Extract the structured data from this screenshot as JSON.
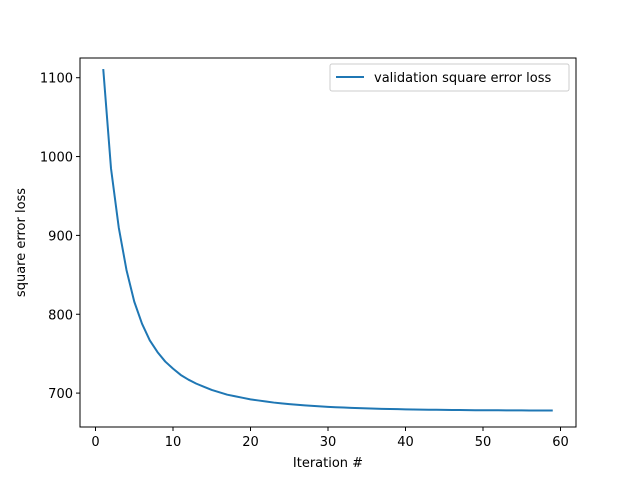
{
  "chart_data": {
    "type": "line",
    "title": "",
    "xlabel": "Iteration #",
    "ylabel": "square error loss",
    "xlim": [
      -2,
      62
    ],
    "ylim": [
      657,
      1125
    ],
    "xticks": [
      0,
      10,
      20,
      30,
      40,
      50,
      60
    ],
    "yticks": [
      700,
      800,
      900,
      1000,
      1100
    ],
    "grid": false,
    "legend_position": "top-right",
    "series": [
      {
        "name": "validation square error loss",
        "color": "#1f77b4",
        "x": [
          1,
          2,
          3,
          4,
          5,
          6,
          7,
          8,
          9,
          10,
          11,
          12,
          13,
          14,
          15,
          16,
          17,
          18,
          19,
          20,
          21,
          22,
          23,
          24,
          25,
          26,
          27,
          28,
          29,
          30,
          31,
          32,
          33,
          34,
          35,
          36,
          37,
          38,
          39,
          40,
          41,
          42,
          43,
          44,
          45,
          46,
          47,
          48,
          49,
          50,
          51,
          52,
          53,
          54,
          55,
          56,
          57,
          58,
          59
        ],
        "y": [
          1111,
          985,
          910,
          856,
          816,
          788,
          767,
          752,
          740,
          731,
          723,
          717,
          712,
          708,
          704,
          701,
          698,
          696,
          694,
          692,
          690.7,
          689.3,
          688,
          687,
          686,
          685.2,
          684.5,
          683.8,
          683.2,
          682.6,
          682.1,
          681.7,
          681.3,
          680.9,
          680.6,
          680.3,
          680,
          679.8,
          679.6,
          679.4,
          679.2,
          679,
          678.9,
          678.8,
          678.7,
          678.6,
          678.5,
          678.4,
          678.3,
          678.3,
          678.2,
          678.2,
          678.1,
          678.1,
          678.1,
          678,
          678,
          678,
          678
        ]
      }
    ]
  }
}
